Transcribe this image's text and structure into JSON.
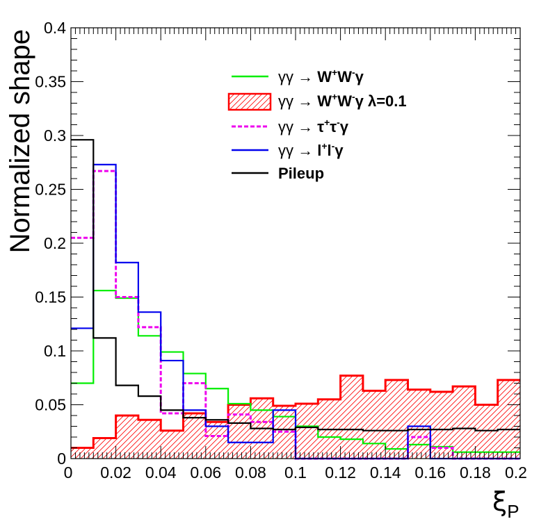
{
  "chart_data": {
    "type": "histogram",
    "ylabel": "Normalized shape",
    "xlabel": "ξ",
    "xlabel_sub": "P",
    "xlim": [
      0,
      0.2
    ],
    "ylim": [
      0,
      0.4
    ],
    "bin_width": 0.01,
    "x_tick_labels": [
      "0",
      "0.02",
      "0.04",
      "0.06",
      "0.08",
      "0.1",
      "0.12",
      "0.14",
      "0.16",
      "0.18",
      "0.2"
    ],
    "x_tick_values": [
      0,
      0.02,
      0.04,
      0.06,
      0.08,
      0.1,
      0.12,
      0.14,
      0.16,
      0.18,
      0.2
    ],
    "y_tick_labels": [
      "0",
      "0.05",
      "0.1",
      "0.15",
      "0.2",
      "0.25",
      "0.3",
      "0.35",
      "0.4"
    ],
    "y_tick_values": [
      0,
      0.05,
      0.1,
      0.15,
      0.2,
      0.25,
      0.3,
      0.35,
      0.4
    ],
    "legend_position": "top-right",
    "series": [
      {
        "name": "γγ → W⁺W⁻γ λ=0.1",
        "legend": {
          "prefix": "γγ → ",
          "main": "W",
          "sup1": "+",
          "mid": "W",
          "sup2": "-",
          "suffix": "γ  λ=0.1"
        },
        "style": "hatched",
        "color": "#ff0000",
        "values": [
          0.01,
          0.019,
          0.04,
          0.036,
          0.026,
          0.042,
          0.034,
          0.05,
          0.056,
          0.049,
          0.051,
          0.055,
          0.077,
          0.063,
          0.073,
          0.064,
          0.062,
          0.067,
          0.05,
          0.073
        ]
      },
      {
        "name": "γγ → W⁺W⁻γ",
        "legend": {
          "prefix": "γγ → ",
          "main": "W",
          "sup1": "+",
          "mid": "W",
          "sup2": "-",
          "suffix": "γ"
        },
        "style": "solid",
        "color": "#00ee00",
        "values": [
          0.07,
          0.156,
          0.149,
          0.114,
          0.099,
          0.079,
          0.065,
          0.051,
          0.045,
          0.039,
          0.03,
          0.02,
          0.018,
          0.014,
          0.009,
          0.013,
          0.011,
          0.006,
          0.006,
          0.006
        ]
      },
      {
        "name": "γγ → τ⁺τ⁻γ",
        "legend": {
          "prefix": "γγ → ",
          "main": "τ",
          "sup1": "+",
          "mid": "τ",
          "sup2": "-",
          "suffix": "γ"
        },
        "style": "dashed",
        "color": "#ee00ee",
        "values": [
          0.205,
          0.267,
          0.15,
          0.122,
          0.042,
          0.07,
          0.021,
          0.041,
          0.034,
          0.025,
          0.0,
          0.0,
          0.0,
          0.0,
          0.0,
          0.02,
          0.01,
          0.0,
          0.0,
          0.0
        ]
      },
      {
        "name": "γγ → l⁺l⁻γ",
        "legend": {
          "prefix": "γγ → ",
          "main": "l",
          "sup1": "+",
          "mid": "l",
          "sup2": "-",
          "suffix": "γ"
        },
        "style": "solid",
        "color": "#0000ee",
        "values": [
          0.121,
          0.273,
          0.182,
          0.136,
          0.091,
          0.045,
          0.03,
          0.015,
          0.015,
          0.045,
          0.0,
          0.0,
          0.0,
          0.0,
          0.0,
          0.03,
          0.0,
          0.0,
          0.0,
          0.0
        ]
      },
      {
        "name": "Pileup",
        "legend": {
          "plain": "Pileup"
        },
        "style": "solid",
        "color": "#000000",
        "values": [
          0.296,
          0.112,
          0.068,
          0.058,
          0.045,
          0.038,
          0.036,
          0.033,
          0.028,
          0.027,
          0.029,
          0.027,
          0.027,
          0.026,
          0.026,
          0.027,
          0.027,
          0.028,
          0.026,
          0.027
        ]
      }
    ],
    "legend_order": [
      1,
      0,
      2,
      3,
      4
    ]
  }
}
